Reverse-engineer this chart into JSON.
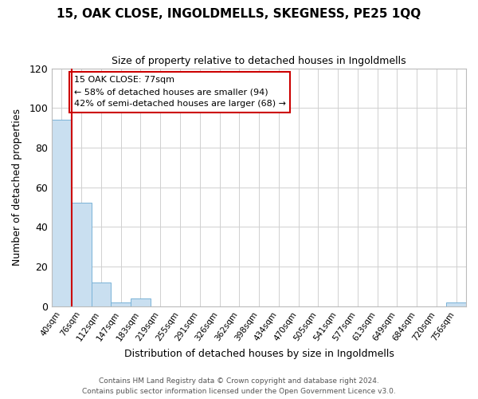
{
  "title": "15, OAK CLOSE, INGOLDMELLS, SKEGNESS, PE25 1QQ",
  "subtitle": "Size of property relative to detached houses in Ingoldmells",
  "xlabel": "Distribution of detached houses by size in Ingoldmells",
  "ylabel": "Number of detached properties",
  "bar_labels": [
    "40sqm",
    "76sqm",
    "112sqm",
    "147sqm",
    "183sqm",
    "219sqm",
    "255sqm",
    "291sqm",
    "326sqm",
    "362sqm",
    "398sqm",
    "434sqm",
    "470sqm",
    "505sqm",
    "541sqm",
    "577sqm",
    "613sqm",
    "649sqm",
    "684sqm",
    "720sqm",
    "756sqm"
  ],
  "bar_values": [
    94,
    52,
    12,
    2,
    4,
    0,
    0,
    0,
    0,
    0,
    0,
    0,
    0,
    0,
    0,
    0,
    0,
    0,
    0,
    0,
    2
  ],
  "bar_color": "#c9dff0",
  "bar_edge_color": "#7ab3d8",
  "vline_color": "#cc0000",
  "annotation_title": "15 OAK CLOSE: 77sqm",
  "annotation_line1": "← 58% of detached houses are smaller (94)",
  "annotation_line2": "42% of semi-detached houses are larger (68) →",
  "annotation_box_edge": "#cc0000",
  "ylim": [
    0,
    120
  ],
  "yticks": [
    0,
    20,
    40,
    60,
    80,
    100,
    120
  ],
  "grid_color": "#d0d0d0",
  "background_color": "#ffffff",
  "footnote1": "Contains HM Land Registry data © Crown copyright and database right 2024.",
  "footnote2": "Contains public sector information licensed under the Open Government Licence v3.0."
}
